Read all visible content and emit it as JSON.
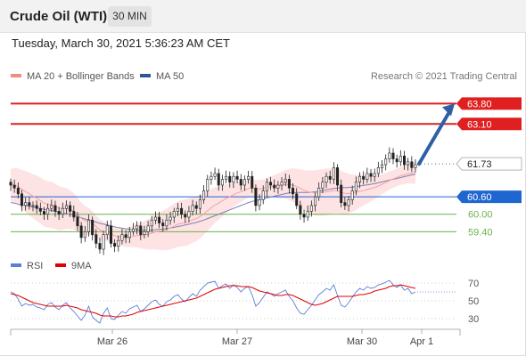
{
  "header": {
    "title": "Crude Oil (WTI)",
    "timeframe": "30 MIN"
  },
  "timestamp": "Tuesday, March 30, 2021 5:36:23 AM CET",
  "legend": {
    "bollinger": {
      "label": "MA 20 + Bollinger Bands",
      "color": "#f28b82"
    },
    "ma50": {
      "label": "MA 50",
      "color": "#2f5597"
    },
    "copyright": "Research © 2021 Trading Central"
  },
  "rsi_legend": {
    "rsi": {
      "label": "RSI",
      "color": "#5b7fd6"
    },
    "ma9": {
      "label": "9MA",
      "color": "#e00000"
    }
  },
  "colors": {
    "resistance": "#e02020",
    "current": "#222222",
    "support_main": "#1f66d1",
    "support": "#6ab04c",
    "arrow": "#2f5fa5",
    "band_fill": "#fde0e0",
    "candle": "#222222"
  },
  "chart_data": [
    {
      "type": "candlestick",
      "x_ticks": [
        "Mar 26",
        "Mar 27",
        "Mar 30",
        "Apr 1"
      ],
      "y_range": [
        58.8,
        64.3
      ],
      "levels": [
        {
          "value": 63.8,
          "label": "63.80",
          "kind": "resistance"
        },
        {
          "value": 63.1,
          "label": "63.10",
          "kind": "resistance"
        },
        {
          "value": 61.73,
          "label": "61.73",
          "kind": "current"
        },
        {
          "value": 60.6,
          "label": "60.60",
          "kind": "support_main"
        },
        {
          "value": 60.0,
          "label": "60.00",
          "kind": "support"
        },
        {
          "value": 59.4,
          "label": "59.40",
          "kind": "support"
        }
      ],
      "arrow": {
        "from": 61.73,
        "to": 63.8
      },
      "close": [
        61.0,
        60.9,
        60.7,
        60.3,
        60.4,
        60.3,
        60.3,
        60.2,
        60.1,
        60.0,
        60.2,
        60.3,
        60.1,
        60.0,
        60.2,
        60.3,
        60.1,
        59.9,
        59.6,
        59.2,
        59.4,
        59.8,
        59.3,
        59.0,
        58.8,
        59.3,
        59.6,
        59.0,
        58.9,
        59.1,
        59.3,
        59.2,
        59.4,
        59.5,
        59.6,
        59.3,
        59.4,
        59.6,
        59.8,
        59.9,
        59.7,
        59.6,
        59.8,
        59.9,
        60.1,
        60.2,
        60.0,
        59.9,
        60.1,
        60.3,
        60.2,
        60.5,
        60.8,
        61.2,
        61.3,
        61.4,
        61.0,
        61.2,
        61.3,
        61.1,
        61.3,
        61.2,
        61.0,
        61.2,
        61.3,
        60.9,
        60.3,
        60.5,
        60.8,
        61.1,
        61.0,
        60.9,
        61.0,
        61.1,
        61.2,
        60.9,
        60.7,
        60.3,
        60.0,
        59.9,
        60.1,
        60.3,
        60.6,
        60.9,
        61.1,
        61.3,
        61.2,
        61.6,
        61.0,
        60.4,
        60.3,
        60.5,
        60.8,
        61.1,
        61.3,
        61.2,
        61.4,
        61.3,
        61.4,
        61.6,
        61.7,
        61.9,
        62.1,
        61.9,
        61.8,
        62.0,
        61.7,
        61.8,
        61.6,
        61.7
      ],
      "ma20": [
        61.0,
        61.0,
        60.95,
        60.85,
        60.78,
        60.7,
        60.62,
        60.55,
        60.47,
        60.38,
        60.34,
        60.32,
        60.27,
        60.21,
        60.2,
        60.2,
        60.16,
        60.1,
        60.0,
        59.86,
        59.78,
        59.76,
        59.68,
        59.58,
        59.46,
        59.42,
        59.4,
        59.33,
        59.26,
        59.23,
        59.22,
        59.2,
        59.22,
        59.24,
        59.27,
        59.27,
        59.29,
        59.31,
        59.35,
        59.4,
        59.42,
        59.44,
        59.48,
        59.53,
        59.6,
        59.66,
        59.69,
        59.71,
        59.75,
        59.81,
        59.85,
        59.92,
        60.01,
        60.12,
        60.22,
        60.32,
        60.38,
        60.46,
        60.54,
        60.6,
        60.67,
        60.73,
        60.77,
        60.83,
        60.88,
        60.9,
        60.87,
        60.87,
        60.88,
        60.92,
        60.94,
        60.96,
        60.98,
        61.0,
        61.03,
        61.02,
        61.0,
        60.95,
        60.89,
        60.82,
        60.78,
        60.75,
        60.73,
        60.74,
        60.75,
        60.77,
        60.78,
        60.82,
        60.8,
        60.75,
        60.72,
        60.71,
        60.72,
        60.75,
        60.79,
        60.81,
        60.85,
        60.88,
        60.92,
        60.97,
        61.03,
        61.09,
        61.16,
        61.21,
        61.26,
        61.32,
        61.35,
        61.39,
        61.41,
        61.44
      ],
      "ma50": [
        60.4,
        60.38,
        60.35,
        60.32,
        60.3,
        60.27,
        60.25,
        60.22,
        60.2,
        60.17,
        60.15,
        60.13,
        60.1,
        60.07,
        60.05,
        60.02,
        60.0,
        59.96,
        59.92,
        59.88,
        59.84,
        59.81,
        59.77,
        59.73,
        59.69,
        59.66,
        59.63,
        59.6,
        59.57,
        59.54,
        59.52,
        59.5,
        59.48,
        59.47,
        59.46,
        59.45,
        59.45,
        59.45,
        59.46,
        59.47,
        59.48,
        59.49,
        59.51,
        59.53,
        59.55,
        59.58,
        59.6,
        59.63,
        59.66,
        59.69,
        59.72,
        59.76,
        59.8,
        59.85,
        59.9,
        59.95,
        60.0,
        60.05,
        60.1,
        60.15,
        60.2,
        60.25,
        60.3,
        60.35,
        60.4,
        60.44,
        60.47,
        60.5,
        60.53,
        60.56,
        60.59,
        60.62,
        60.65,
        60.68,
        60.71,
        60.73,
        60.74,
        60.75,
        60.75,
        60.75,
        60.75,
        60.76,
        60.77,
        60.79,
        60.81,
        60.84,
        60.86,
        60.89,
        60.9,
        60.91,
        60.91,
        60.92,
        60.93,
        60.95,
        60.97,
        60.99,
        61.01,
        61.03,
        61.05,
        61.08,
        61.11,
        61.14,
        61.17,
        61.2,
        61.23,
        61.26,
        61.29,
        61.32,
        61.35,
        61.37
      ],
      "band_width": 0.55
    },
    {
      "type": "line",
      "name": "RSI panel",
      "y_ticks": [
        70,
        50,
        30
      ],
      "y_range": [
        22,
        76
      ],
      "rsi": [
        60,
        58,
        52,
        44,
        47,
        45,
        46,
        43,
        42,
        40,
        46,
        48,
        43,
        40,
        45,
        48,
        42,
        38,
        33,
        28,
        34,
        44,
        32,
        28,
        25,
        36,
        42,
        30,
        29,
        34,
        38,
        36,
        41,
        43,
        45,
        38,
        41,
        45,
        49,
        51,
        46,
        44,
        49,
        51,
        55,
        57,
        52,
        49,
        54,
        58,
        55,
        62,
        66,
        70,
        71,
        72,
        64,
        67,
        69,
        64,
        68,
        65,
        60,
        64,
        66,
        57,
        44,
        48,
        54,
        60,
        58,
        55,
        58,
        60,
        62,
        55,
        50,
        42,
        36,
        35,
        40,
        45,
        51,
        57,
        60,
        64,
        62,
        68,
        56,
        45,
        43,
        48,
        54,
        60,
        64,
        62,
        66,
        64,
        65,
        68,
        69,
        71,
        73,
        68,
        65,
        68,
        62,
        64,
        58,
        60
      ],
      "ma9": [
        58,
        57,
        56,
        54,
        52,
        50,
        48,
        47,
        46,
        45,
        44,
        44,
        44,
        44,
        44,
        45,
        44,
        43,
        42,
        40,
        39,
        38,
        37,
        36,
        34,
        33,
        33,
        33,
        32,
        32,
        33,
        33,
        34,
        35,
        37,
        38,
        39,
        40,
        41,
        42,
        43,
        44,
        45,
        46,
        47,
        48,
        49,
        50,
        51,
        52,
        53,
        55,
        57,
        59,
        61,
        63,
        64,
        65,
        66,
        67,
        67,
        67,
        66,
        66,
        66,
        65,
        63,
        61,
        60,
        59,
        58,
        57,
        56,
        56,
        57,
        57,
        56,
        54,
        52,
        50,
        48,
        46,
        45,
        46,
        47,
        49,
        51,
        53,
        55,
        55,
        55,
        55,
        55,
        56,
        57,
        57,
        58,
        59,
        61,
        62,
        63,
        64,
        66,
        67,
        67,
        68,
        67,
        66,
        65,
        64
      ]
    }
  ]
}
